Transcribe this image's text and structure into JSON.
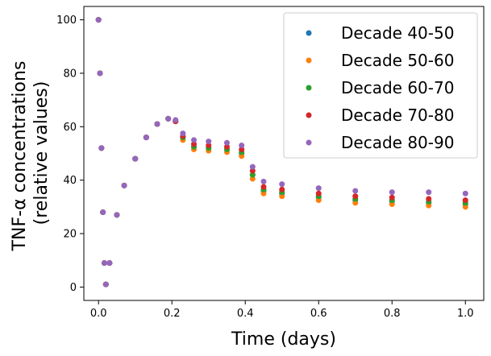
{
  "chart_data": {
    "type": "scatter",
    "title": "",
    "xlabel": "Time (days)",
    "ylabel_lines": [
      "TNF-α concentrations",
      "(relative values)"
    ],
    "xlim": [
      -0.04,
      1.05
    ],
    "ylim": [
      -5,
      105
    ],
    "x_ticks": [
      0.0,
      0.2,
      0.4,
      0.6,
      0.8,
      1.0
    ],
    "x_tick_labels": [
      "0.0",
      "0.2",
      "0.4",
      "0.6",
      "0.8",
      "1.0"
    ],
    "y_ticks": [
      0,
      20,
      40,
      60,
      80,
      100
    ],
    "y_tick_labels": [
      "0",
      "20",
      "40",
      "60",
      "80",
      "100"
    ],
    "grid": false,
    "legend_position": "upper right",
    "marker": "circle",
    "series": [
      {
        "name": "Decade 40-50",
        "color": "#1f77b4",
        "x": [
          0.0,
          0.004,
          0.008,
          0.012,
          0.016,
          0.02,
          0.03,
          0.05,
          0.07,
          0.1,
          0.13,
          0.16,
          0.19,
          0.21,
          0.23,
          0.26,
          0.3,
          0.35,
          0.39,
          0.42,
          0.45,
          0.5,
          0.6,
          0.7,
          0.8,
          0.9,
          1.0
        ],
        "y": [
          100,
          80,
          52,
          28,
          9,
          1,
          9,
          27,
          38,
          48,
          56,
          61,
          63,
          62,
          56,
          52.5,
          52,
          51.5,
          50,
          42,
          36,
          35,
          33.5,
          32.5,
          32,
          31.5,
          31
        ]
      },
      {
        "name": "Decade 50-60",
        "color": "#ff7f0e",
        "x": [
          0.0,
          0.004,
          0.008,
          0.012,
          0.016,
          0.02,
          0.03,
          0.05,
          0.07,
          0.1,
          0.13,
          0.16,
          0.19,
          0.21,
          0.23,
          0.26,
          0.3,
          0.35,
          0.39,
          0.42,
          0.45,
          0.5,
          0.6,
          0.7,
          0.8,
          0.9,
          1.0
        ],
        "y": [
          100,
          80,
          52,
          28,
          9,
          1,
          9,
          27,
          38,
          48,
          56,
          61,
          63,
          62,
          55,
          51.5,
          51,
          50.5,
          49,
          40.5,
          35,
          34,
          32.5,
          31.5,
          31,
          30.5,
          30
        ]
      },
      {
        "name": "Decade 60-70",
        "color": "#2ca02c",
        "x": [
          0.0,
          0.004,
          0.008,
          0.012,
          0.016,
          0.02,
          0.03,
          0.05,
          0.07,
          0.1,
          0.13,
          0.16,
          0.19,
          0.21,
          0.23,
          0.26,
          0.3,
          0.35,
          0.39,
          0.42,
          0.45,
          0.5,
          0.6,
          0.7,
          0.8,
          0.9,
          1.0
        ],
        "y": [
          100,
          80,
          52,
          28,
          9,
          1,
          9,
          27,
          38,
          48,
          56,
          61,
          63,
          62,
          56,
          52.5,
          52,
          51.5,
          50.5,
          42,
          36.5,
          35.5,
          34,
          33,
          32.5,
          32,
          31.5
        ]
      },
      {
        "name": "Decade 70-80",
        "color": "#d62728",
        "x": [
          0.0,
          0.004,
          0.008,
          0.012,
          0.016,
          0.02,
          0.03,
          0.05,
          0.07,
          0.1,
          0.13,
          0.16,
          0.19,
          0.21,
          0.23,
          0.26,
          0.3,
          0.35,
          0.39,
          0.42,
          0.45,
          0.5,
          0.6,
          0.7,
          0.8,
          0.9,
          1.0
        ],
        "y": [
          100,
          80,
          52,
          28,
          9,
          1,
          9,
          27,
          38,
          48,
          56,
          61,
          63,
          62,
          56.5,
          53.5,
          53,
          52.5,
          51.5,
          43.5,
          37.5,
          36.5,
          35,
          34,
          33.5,
          33,
          32.5
        ]
      },
      {
        "name": "Decade 80-90",
        "color": "#9467bd",
        "x": [
          0.0,
          0.004,
          0.008,
          0.012,
          0.016,
          0.02,
          0.03,
          0.05,
          0.07,
          0.1,
          0.13,
          0.16,
          0.19,
          0.21,
          0.23,
          0.26,
          0.3,
          0.35,
          0.39,
          0.42,
          0.45,
          0.5,
          0.6,
          0.7,
          0.8,
          0.9,
          1.0
        ],
        "y": [
          100,
          80,
          52,
          28,
          9,
          1,
          9,
          27,
          38,
          48,
          56,
          61,
          63,
          62.5,
          57.5,
          55,
          54.5,
          54,
          53,
          45,
          39.5,
          38.5,
          37,
          36,
          35.5,
          35.5,
          35
        ]
      }
    ]
  }
}
